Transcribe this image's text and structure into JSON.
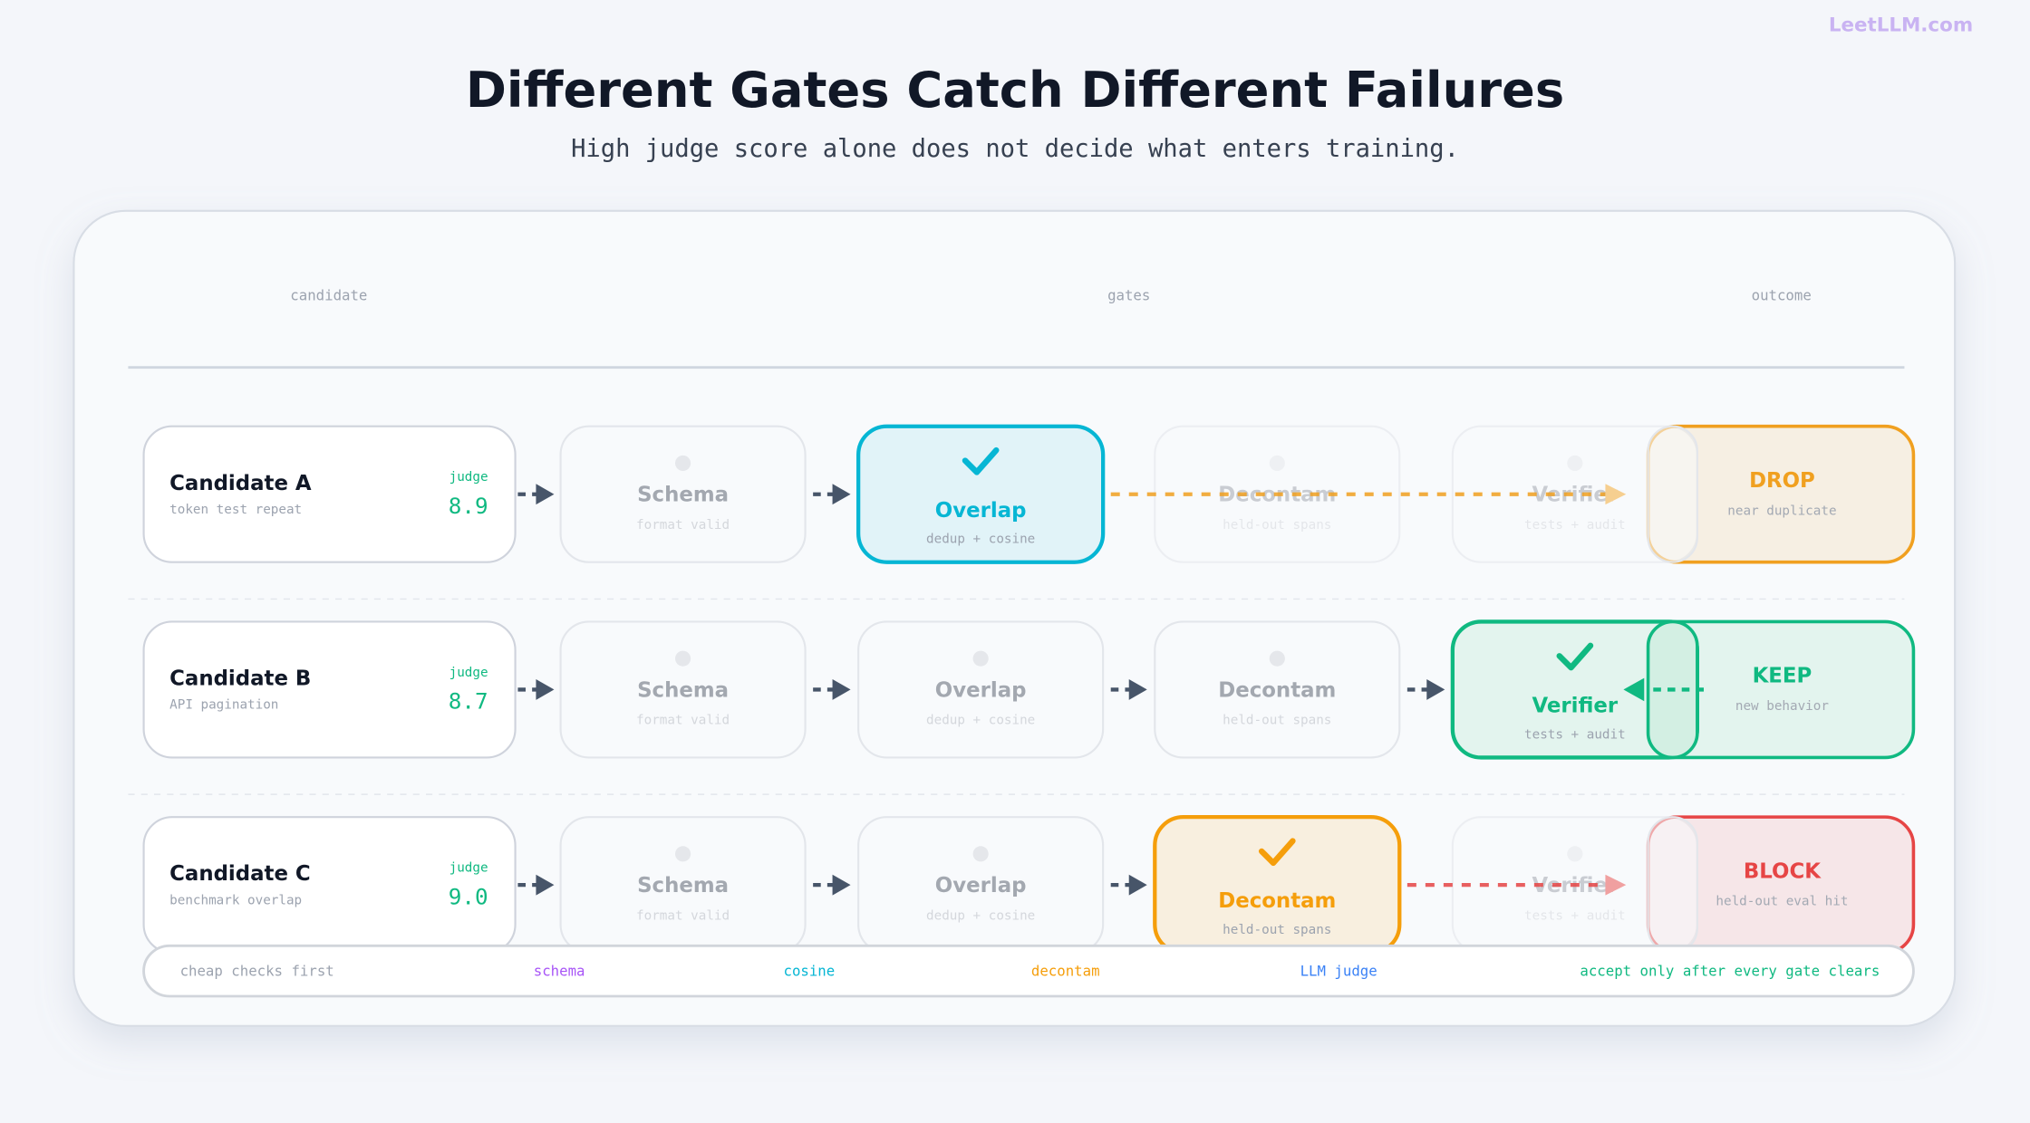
{
  "brand": "LeetLLM.com",
  "title": "Different Gates Catch Different Failures",
  "subtitle": "High judge score alone does not decide what enters training.",
  "columns": [
    "candidate",
    "gates",
    "outcome"
  ],
  "rows": [
    {
      "name": "Candidate A",
      "desc": "token test repeat",
      "judge_label": "judge",
      "score": "8.9",
      "gates": [
        {
          "name": "Schema",
          "sub": "format valid"
        },
        {
          "name": "Overlap",
          "sub": "dedup + cosine"
        },
        {
          "name": "Decontam",
          "sub": "held-out spans"
        },
        {
          "name": "Verifier",
          "sub": "tests + audit"
        }
      ],
      "outcome": {
        "label": "DROP",
        "sub": "near duplicate"
      }
    },
    {
      "name": "Candidate B",
      "desc": "API pagination",
      "judge_label": "judge",
      "score": "8.7",
      "gates": [
        {
          "name": "Schema",
          "sub": "format valid"
        },
        {
          "name": "Overlap",
          "sub": "dedup + cosine"
        },
        {
          "name": "Decontam",
          "sub": "held-out spans"
        },
        {
          "name": "Verifier",
          "sub": "tests + audit"
        }
      ],
      "outcome": {
        "label": "KEEP",
        "sub": "new behavior"
      }
    },
    {
      "name": "Candidate C",
      "desc": "benchmark overlap",
      "judge_label": "judge",
      "score": "9.0",
      "gates": [
        {
          "name": "Schema",
          "sub": "format valid"
        },
        {
          "name": "Overlap",
          "sub": "dedup + cosine"
        },
        {
          "name": "Decontam",
          "sub": "held-out spans"
        },
        {
          "name": "Verifier",
          "sub": "tests + audit"
        }
      ],
      "outcome": {
        "label": "BLOCK",
        "sub": "held-out eval hit"
      }
    }
  ],
  "footer": [
    "cheap checks first",
    "schema",
    "cosine",
    "decontam",
    "LLM judge",
    "accept only after every gate clears"
  ]
}
